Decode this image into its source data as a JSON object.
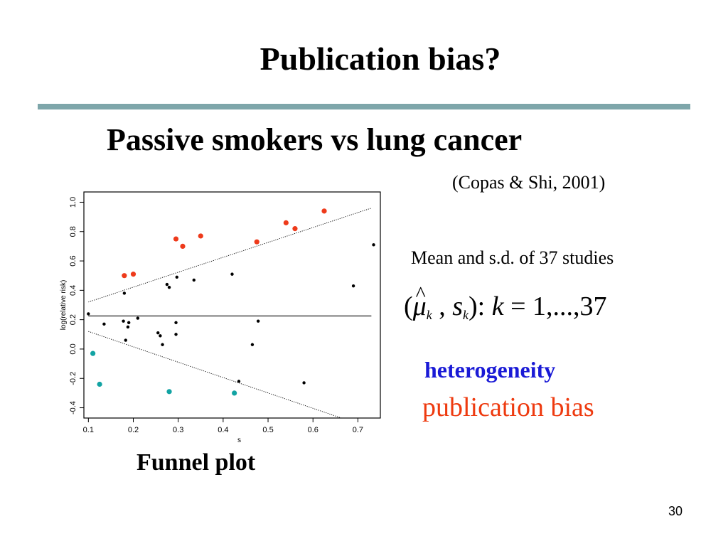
{
  "slide": {
    "title": "Publication bias?",
    "subtitle": "Passive smokers vs lung cancer",
    "citation": "(Copas & Shi, 2001)",
    "stats_line": "Mean and s.d. of 37 studies",
    "formula": {
      "open": "(",
      "mu": "μ",
      "hat": "^",
      "mu_sub": "k",
      "comma": " ,",
      "s": "s",
      "s_sub": "k",
      "close_colon": "):",
      "k": "k",
      "equals_range": " = 1,...,37"
    },
    "heterogeneity": "heterogeneity",
    "publication_bias": "publication bias",
    "caption": "Funnel plot",
    "page_number": "30",
    "colors": {
      "rule": "#7ea6aa",
      "heterogeneity": "#1a1ad6",
      "publication_bias": "#ee3a0f",
      "red_points": "#ee3a1b",
      "teal_points": "#12a3a3",
      "black_points": "#000000"
    }
  },
  "chart_data": {
    "type": "scatter",
    "title": "",
    "xlabel": "s",
    "ylabel": "log(relative risk)",
    "xlim": [
      0.09,
      0.75
    ],
    "ylim": [
      -0.47,
      1.07
    ],
    "x_ticks": [
      0.1,
      0.2,
      0.3,
      0.4,
      0.5,
      0.6,
      0.7
    ],
    "x_tick_labels": [
      "0.1",
      "0.2",
      "0.3",
      "0.4",
      "0.5",
      "0.6",
      "0.7"
    ],
    "y_ticks": [
      -0.4,
      -0.2,
      0.0,
      0.2,
      0.4,
      0.6,
      0.8,
      1.0
    ],
    "y_tick_labels": [
      "-0.4",
      "-0.2",
      "0.0",
      "0.2",
      "0.4",
      "0.6",
      "0.8",
      "1.0"
    ],
    "grid": false,
    "series": [
      {
        "color": "#ee3a1b",
        "points": [
          [
            0.18,
            0.5
          ],
          [
            0.2,
            0.51
          ],
          [
            0.295,
            0.75
          ],
          [
            0.31,
            0.7
          ],
          [
            0.35,
            0.77
          ],
          [
            0.475,
            0.73
          ],
          [
            0.54,
            0.86
          ],
          [
            0.56,
            0.82
          ],
          [
            0.625,
            0.94
          ]
        ]
      },
      {
        "color": "#12a3a3",
        "points": [
          [
            0.11,
            -0.03
          ],
          [
            0.125,
            -0.24
          ],
          [
            0.28,
            -0.29
          ],
          [
            0.425,
            -0.3
          ]
        ]
      },
      {
        "color": "#000000",
        "points": [
          [
            0.1,
            0.24
          ],
          [
            0.135,
            0.17
          ],
          [
            0.178,
            0.19
          ],
          [
            0.18,
            0.38
          ],
          [
            0.183,
            0.06
          ],
          [
            0.188,
            0.15
          ],
          [
            0.19,
            0.18
          ],
          [
            0.21,
            0.21
          ],
          [
            0.255,
            0.11
          ],
          [
            0.26,
            0.09
          ],
          [
            0.265,
            0.03
          ],
          [
            0.275,
            0.44
          ],
          [
            0.28,
            0.42
          ],
          [
            0.295,
            0.1
          ],
          [
            0.295,
            0.18
          ],
          [
            0.297,
            0.49
          ],
          [
            0.335,
            0.47
          ],
          [
            0.42,
            0.51
          ],
          [
            0.435,
            -0.22
          ],
          [
            0.465,
            0.03
          ],
          [
            0.478,
            0.19
          ],
          [
            0.58,
            -0.23
          ],
          [
            0.69,
            0.43
          ],
          [
            0.735,
            0.71
          ]
        ]
      }
    ],
    "lines": [
      {
        "style": "solid",
        "points": [
          [
            0.1,
            0.225
          ],
          [
            0.73,
            0.225
          ]
        ]
      },
      {
        "style": "dotted",
        "points": [
          [
            0.1,
            0.32
          ],
          [
            0.73,
            0.96
          ]
        ]
      },
      {
        "style": "dotted",
        "points": [
          [
            0.1,
            0.12
          ],
          [
            0.73,
            -0.54
          ]
        ]
      }
    ]
  }
}
